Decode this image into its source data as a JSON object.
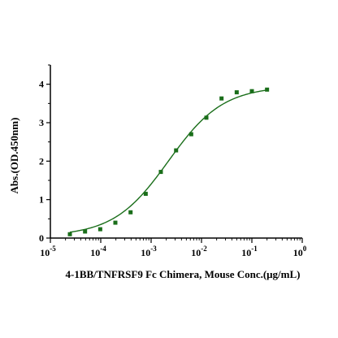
{
  "chart_data": {
    "type": "scatter",
    "xlabel": "4-1BB/TNFRSF9 Fc Chimera, Mouse Conc.(μg/mL)",
    "ylabel": "Abs.(OD.450nm)",
    "x_scale": "log",
    "xlim": [
      1e-05,
      1
    ],
    "ylim": [
      0,
      4.5
    ],
    "x_ticks": [
      {
        "value": 1e-05,
        "base": "10",
        "exp": "-5"
      },
      {
        "value": 0.0001,
        "base": "10",
        "exp": "-4"
      },
      {
        "value": 0.001,
        "base": "10",
        "exp": "-3"
      },
      {
        "value": 0.01,
        "base": "10",
        "exp": "-2"
      },
      {
        "value": 0.1,
        "base": "10",
        "exp": "-1"
      },
      {
        "value": 1,
        "base": "10",
        "exp": "0"
      }
    ],
    "y_ticks": [
      0,
      1,
      2,
      3,
      4
    ],
    "grid": false,
    "colors": {
      "points": "#1a6e1a",
      "curve": "#1a6e1a",
      "axis": "#000000"
    },
    "series": [
      {
        "marker": "square",
        "x": [
          2.44e-05,
          4.88e-05,
          9.77e-05,
          0.000195,
          0.000391,
          0.000781,
          0.00156,
          0.00313,
          0.00625,
          0.0125,
          0.025,
          0.05,
          0.1,
          0.2
        ],
        "y": [
          0.1,
          0.17,
          0.23,
          0.4,
          0.67,
          1.15,
          1.72,
          2.28,
          2.7,
          3.13,
          3.63,
          3.79,
          3.82,
          3.86
        ]
      }
    ],
    "fit_curve": {
      "model": "4PL",
      "bottom": 0.05,
      "top": 3.95,
      "ec50": 0.0022,
      "hill": 0.8
    }
  }
}
